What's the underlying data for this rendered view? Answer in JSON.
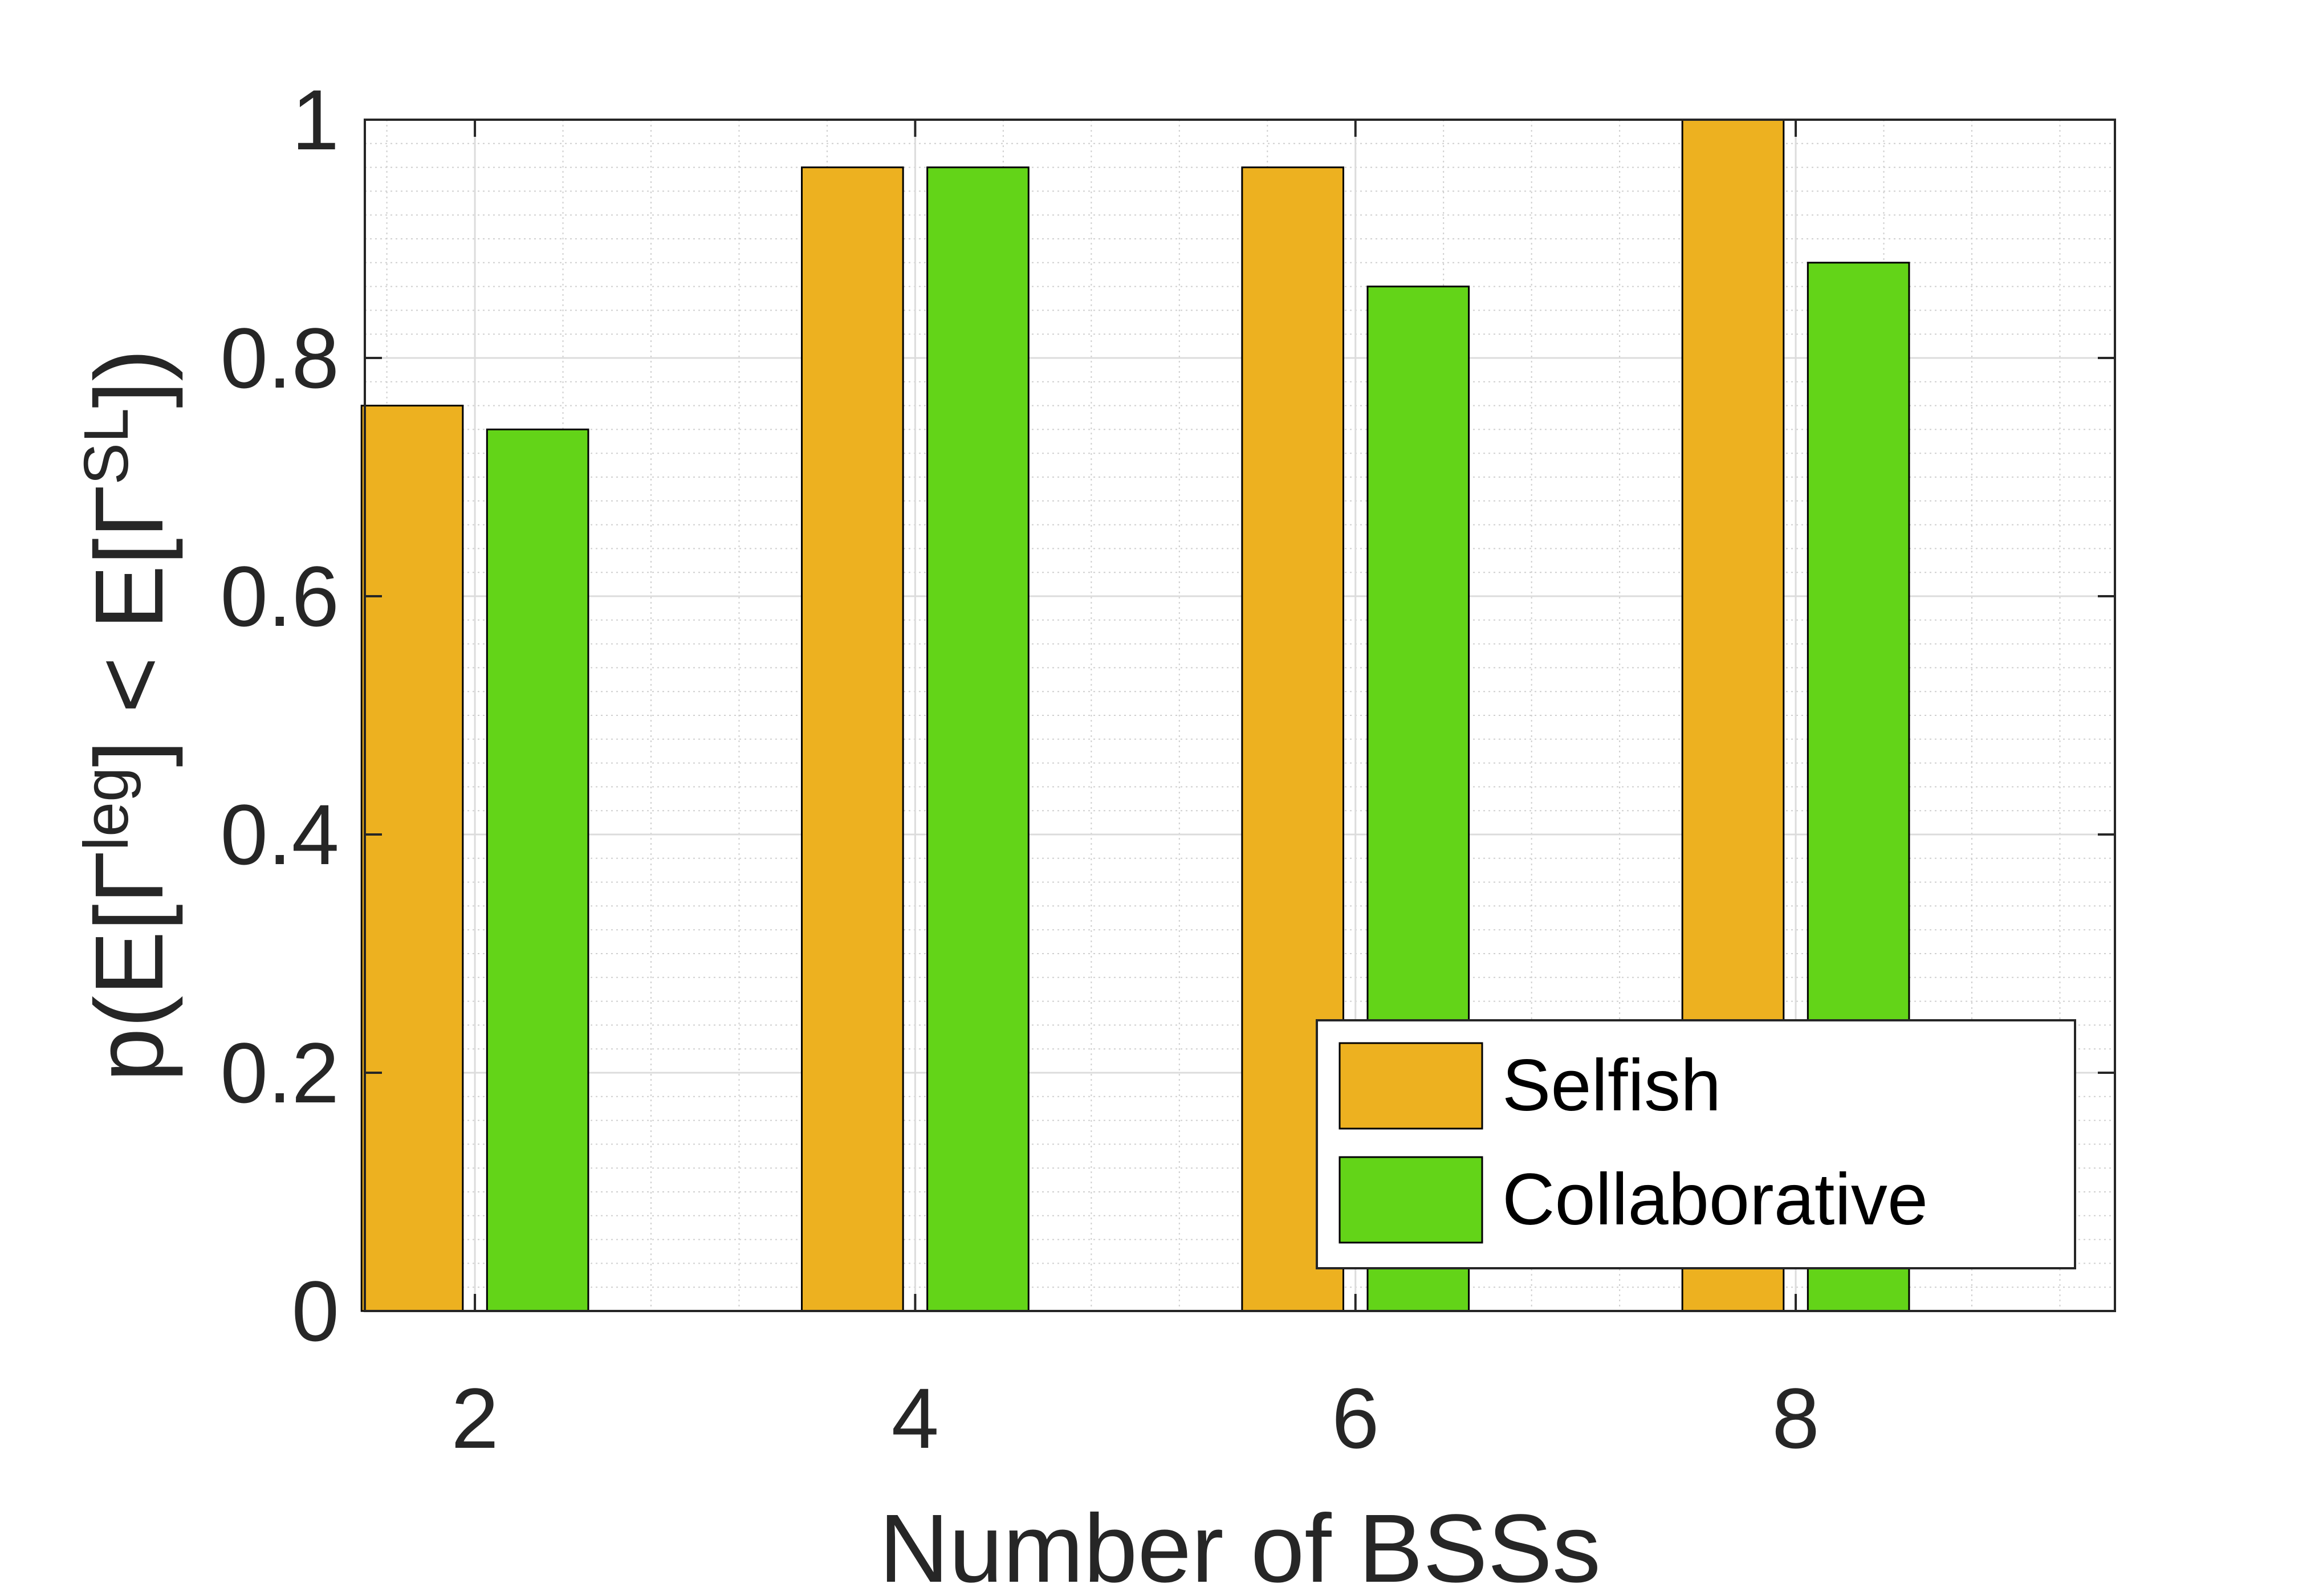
{
  "chart_data": {
    "type": "bar",
    "categories": [
      "2",
      "4",
      "6",
      "8"
    ],
    "series": [
      {
        "name": "Selfish",
        "values": [
          0.76,
          0.96,
          0.96,
          1.0
        ],
        "color": "#EDB120"
      },
      {
        "name": "Collaborative",
        "values": [
          0.74,
          0.96,
          0.86,
          0.88
        ],
        "color": "#63D418"
      }
    ],
    "xlabel": "Number of BSSs",
    "ylabel": "p(E[Γleg] < E[ΓSL])",
    "ylabel_parts": {
      "pre": "p(E[Γ",
      "sup1": "leg",
      "mid": "] < E[Γ",
      "sup2": "SL",
      "post": "])"
    },
    "xlim": [
      1.5,
      9.45
    ],
    "ylim": [
      0,
      1
    ],
    "yticks": [
      "0",
      "0.2",
      "0.4",
      "0.6",
      "0.8",
      "1"
    ],
    "xticks": [
      "2",
      "4",
      "6",
      "8"
    ],
    "grid": true,
    "minor_grid": true,
    "legend_position": "bottom-right"
  }
}
